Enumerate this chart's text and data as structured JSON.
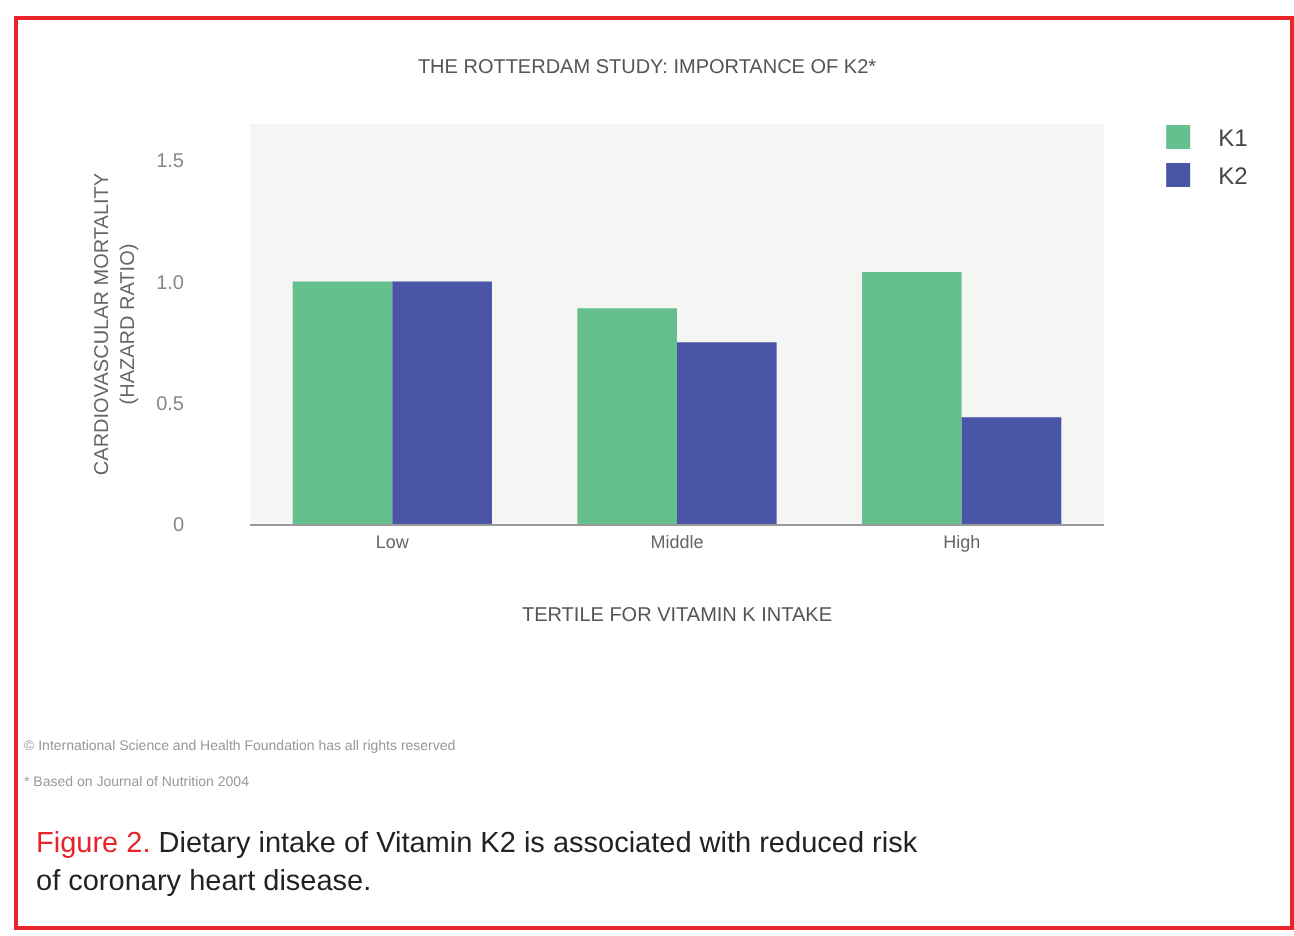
{
  "chart_data": {
    "type": "bar",
    "title": "THE ROTTERDAM STUDY: IMPORTANCE OF K2*",
    "xlabel": "TERTILE FOR VITAMIN K INTAKE",
    "ylabel": "CARDIOVASCULAR MORTALITY\n(HAZARD RATIO)",
    "categories": [
      "Low",
      "Middle",
      "High"
    ],
    "series": [
      {
        "name": "K1",
        "color": "#66c08e",
        "values": [
          1.0,
          0.89,
          1.04
        ]
      },
      {
        "name": "K2",
        "color": "#4a55a8",
        "values": [
          1.0,
          0.75,
          0.44
        ]
      }
    ],
    "ylim": [
      0,
      1.65
    ],
    "yticks": [
      0,
      0.5,
      {
        "value": 1,
        "label": "1.0"
      },
      1.5
    ],
    "grid": false,
    "legend": "top right",
    "annotations": [
      "© International Science and Health Foundation has all rights reserved",
      "* Based on Journal of Nutrition 2004",
      "Figure 2.",
      "Dietary intake of Vitamin K2 is associated with reduced risk of coronary heart disease."
    ]
  }
}
